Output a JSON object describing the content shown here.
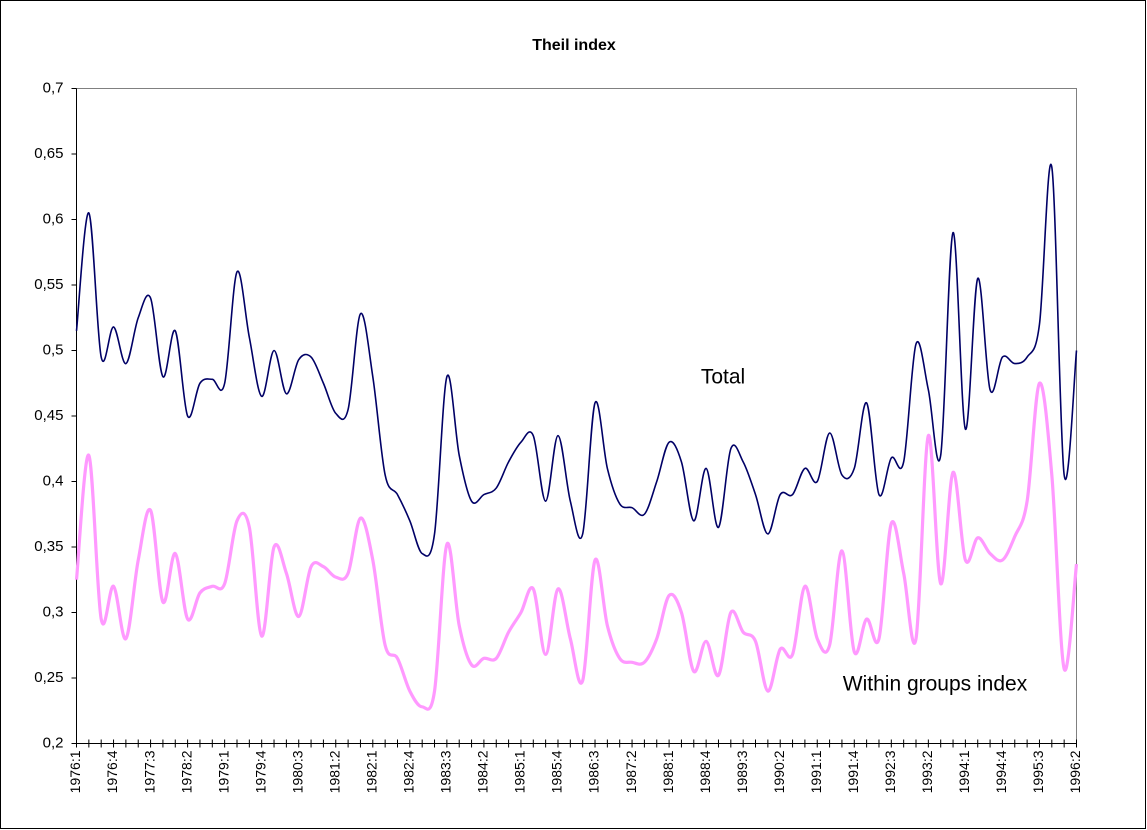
{
  "chart_data": {
    "type": "line",
    "title": "Theil index",
    "categories": [
      "1976:1",
      null,
      null,
      "1976:4",
      null,
      null,
      "1977:3",
      null,
      null,
      "1978:2",
      null,
      null,
      "1979:1",
      null,
      null,
      "1979:4",
      null,
      null,
      "1980:3",
      null,
      null,
      "1981:2",
      null,
      null,
      "1982:1",
      null,
      null,
      "1982:4",
      null,
      null,
      "1983:3",
      null,
      null,
      "1984:2",
      null,
      null,
      "1985:1",
      null,
      null,
      "1985:4",
      null,
      null,
      "1986:3",
      null,
      null,
      "1987:2",
      null,
      null,
      "1988:1",
      null,
      null,
      "1988:4",
      null,
      null,
      "1989:3",
      null,
      null,
      "1990:2",
      null,
      null,
      "1991:1",
      null,
      null,
      "1991:4",
      null,
      null,
      "1992:3",
      null,
      null,
      "1993:2",
      null,
      null,
      "1994:1",
      null,
      null,
      "1994:4",
      null,
      null,
      "1995:3",
      null,
      null,
      "1996:2"
    ],
    "series": [
      {
        "name": "Total",
        "color": "#000066",
        "values": [
          0.515,
          0.605,
          0.495,
          0.518,
          0.49,
          0.525,
          0.54,
          0.48,
          0.515,
          0.45,
          0.475,
          0.478,
          0.475,
          0.56,
          0.51,
          0.465,
          0.5,
          0.467,
          0.493,
          0.495,
          0.475,
          0.452,
          0.455,
          0.528,
          0.48,
          0.405,
          0.39,
          0.37,
          0.345,
          0.36,
          0.48,
          0.42,
          0.385,
          0.39,
          0.395,
          0.415,
          0.43,
          0.435,
          0.385,
          0.435,
          0.385,
          0.36,
          0.46,
          0.41,
          0.383,
          0.38,
          0.375,
          0.4,
          0.43,
          0.415,
          0.37,
          0.41,
          0.365,
          0.425,
          0.415,
          0.39,
          0.36,
          0.39,
          0.39,
          0.41,
          0.4,
          0.437,
          0.405,
          0.41,
          0.46,
          0.39,
          0.418,
          0.415,
          0.505,
          0.47,
          0.42,
          0.59,
          0.44,
          0.555,
          0.47,
          0.495,
          0.49,
          0.495,
          0.52,
          0.64,
          0.405,
          0.5
        ]
      },
      {
        "name": "Within groups index",
        "color": "#ff99ff",
        "values": [
          0.325,
          0.42,
          0.295,
          0.32,
          0.28,
          0.34,
          0.378,
          0.308,
          0.345,
          0.295,
          0.315,
          0.32,
          0.322,
          0.37,
          0.365,
          0.282,
          0.35,
          0.33,
          0.297,
          0.335,
          0.335,
          0.327,
          0.33,
          0.372,
          0.34,
          0.275,
          0.265,
          0.24,
          0.228,
          0.24,
          0.352,
          0.29,
          0.26,
          0.265,
          0.265,
          0.285,
          0.3,
          0.318,
          0.268,
          0.318,
          0.28,
          0.248,
          0.34,
          0.29,
          0.265,
          0.262,
          0.262,
          0.28,
          0.313,
          0.3,
          0.255,
          0.278,
          0.252,
          0.3,
          0.285,
          0.278,
          0.24,
          0.272,
          0.268,
          0.32,
          0.28,
          0.275,
          0.347,
          0.27,
          0.295,
          0.28,
          0.368,
          0.33,
          0.28,
          0.435,
          0.322,
          0.407,
          0.34,
          0.357,
          0.345,
          0.34,
          0.358,
          0.385,
          0.475,
          0.405,
          0.257,
          0.337
        ]
      }
    ],
    "ylim": [
      0.2,
      0.7
    ],
    "yticks": [
      {
        "value": 0.2,
        "label": "0,2"
      },
      {
        "value": 0.25,
        "label": "0,25"
      },
      {
        "value": 0.3,
        "label": "0,3"
      },
      {
        "value": 0.35,
        "label": "0,35"
      },
      {
        "value": 0.4,
        "label": "0,4"
      },
      {
        "value": 0.45,
        "label": "0,45"
      },
      {
        "value": 0.5,
        "label": "0,5"
      },
      {
        "value": 0.55,
        "label": "0,55"
      },
      {
        "value": 0.6,
        "label": "0,6"
      },
      {
        "value": 0.65,
        "label": "0,65"
      },
      {
        "value": 0.7,
        "label": "0,7"
      }
    ],
    "grid": false
  }
}
